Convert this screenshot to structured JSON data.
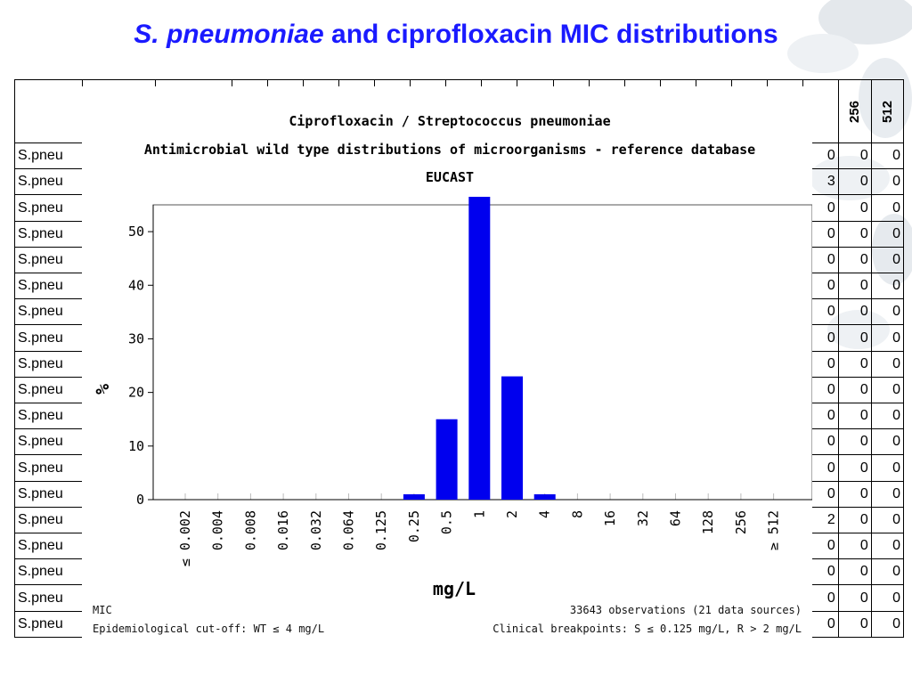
{
  "slide": {
    "title_italic": "S. pneumoniae",
    "title_rest": " and ciprofloxacin MIC distributions"
  },
  "background_table": {
    "visible_header_cells": [
      "256",
      "512"
    ],
    "row_label": "S.pneu",
    "rows": [
      {
        "cells": [
          "0",
          "0",
          "0"
        ]
      },
      {
        "cells": [
          "3",
          "0",
          "0"
        ]
      },
      {
        "cells": [
          "0",
          "0",
          "0"
        ]
      },
      {
        "cells": [
          "0",
          "0",
          "0"
        ]
      },
      {
        "cells": [
          "0",
          "0",
          "0"
        ]
      },
      {
        "cells": [
          "0",
          "0",
          "0"
        ]
      },
      {
        "cells": [
          "0",
          "0",
          "0"
        ]
      },
      {
        "cells": [
          "0",
          "0",
          "0"
        ]
      },
      {
        "cells": [
          "0",
          "0",
          "0"
        ]
      },
      {
        "cells": [
          "0",
          "0",
          "0"
        ]
      },
      {
        "cells": [
          "0",
          "0",
          "0"
        ]
      },
      {
        "cells": [
          "0",
          "0",
          "0"
        ]
      },
      {
        "cells": [
          "0",
          "0",
          "0"
        ]
      },
      {
        "cells": [
          "0",
          "0",
          "0"
        ]
      },
      {
        "cells": [
          "2",
          "0",
          "0"
        ]
      },
      {
        "cells": [
          "0",
          "0",
          "0"
        ]
      },
      {
        "cells": [
          "0",
          "0",
          "0"
        ]
      },
      {
        "cells": [
          "0",
          "0",
          "0"
        ]
      },
      {
        "cells": [
          "0",
          "0",
          "0"
        ]
      }
    ]
  },
  "chart_data": {
    "type": "bar",
    "title": "Ciprofloxacin / Streptococcus pneumoniae",
    "subtitle": "Antimicrobial wild type distributions of microorganisms - reference database",
    "source": "EUCAST",
    "xlabel": "mg/L",
    "ylabel": "%",
    "ylim": [
      0,
      55
    ],
    "yticks": [
      0,
      10,
      20,
      30,
      40,
      50
    ],
    "categories": [
      "≤ 0.002",
      "0.004",
      "0.008",
      "0.016",
      "0.032",
      "0.064",
      "0.125",
      "0.25",
      "0.5",
      "1",
      "2",
      "4",
      "8",
      "16",
      "32",
      "64",
      "128",
      "256",
      "≥ 512"
    ],
    "values": [
      0,
      0,
      0,
      0,
      0,
      0,
      0,
      1,
      15,
      56.5,
      23,
      1,
      0,
      0,
      0,
      0,
      0,
      0,
      0
    ],
    "bar_color": "#0000ee",
    "grid": false,
    "footer_left_1": "MIC",
    "footer_left_2": "Epidemiological cut-off: WT ≤ 4 mg/L",
    "footer_right_1": "33643 observations (21 data sources)",
    "footer_right_2": "Clinical breakpoints: S ≤ 0.125 mg/L,  R > 2 mg/L"
  }
}
